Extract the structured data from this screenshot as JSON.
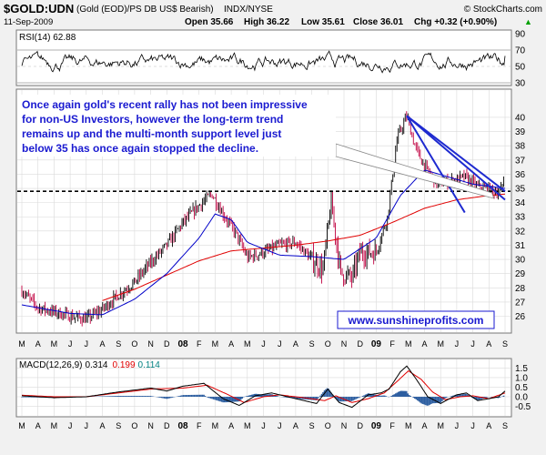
{
  "header": {
    "symbol": "$GOLD:UDN",
    "description": "(Gold (EOD)/PS DB US$ Bearish)",
    "exchange": "INDX/NYSE",
    "copyright": "© StockCharts.com",
    "date": "11-Sep-2009",
    "open": "Open 35.66",
    "high": "High 36.22",
    "low": "Low 35.61",
    "close": "Close 36.01",
    "change": "Chg +0.32 (+0.90%)",
    "change_arrow": "▲"
  },
  "annotation": {
    "line1": "Once again gold's recent rally has not been impressive",
    "line2": "for non-US Investors, however the long-term trend",
    "line3": "remains up and the multi-month support level just",
    "line4": "below 35 has once again stopped the decline."
  },
  "watermark": "www.sunshineprofits.com",
  "colors": {
    "background": "#f1f1f1",
    "panel": "#ffffff",
    "price_up": "#000000",
    "price_down": "#c00040",
    "ma_fast": "#0000c8",
    "ma_slow": "#e00000",
    "trendline": "#1e2ad0",
    "annotation_text": "#1a1ad0",
    "macd_hist": "#2d5ea0",
    "macd_signal_text": "#e00000",
    "macd_hist_text": "#008080"
  },
  "chart_data": [
    {
      "type": "line",
      "title": "RSI(14) 62.88",
      "indicator": "RSI",
      "period": 14,
      "last_value": 62.88,
      "ylim": [
        30,
        90
      ],
      "yticks": [
        30,
        50,
        70,
        90
      ],
      "reference_lines": [
        30,
        70
      ]
    },
    {
      "type": "candlestick",
      "title": "$GOLD:UDN",
      "ylim": [
        25.2,
        41.6
      ],
      "yticks": [
        26,
        27,
        28,
        29,
        30,
        31,
        32,
        33,
        34,
        35,
        36,
        37,
        38,
        39,
        40
      ],
      "x_months": [
        "M",
        "A",
        "M",
        "J",
        "J",
        "A",
        "S",
        "O",
        "N",
        "D",
        "08",
        "F",
        "M",
        "A",
        "M",
        "J",
        "J",
        "A",
        "S",
        "O",
        "N",
        "D",
        "09",
        "F",
        "M",
        "A",
        "M",
        "J",
        "J",
        "A",
        "S"
      ],
      "year_labels": [
        "08",
        "09"
      ],
      "price_path": [
        [
          0,
          27.8
        ],
        [
          1,
          26.6
        ],
        [
          2,
          26.3
        ],
        [
          3,
          26.0
        ],
        [
          4,
          25.8
        ],
        [
          5,
          26.5
        ],
        [
          6,
          27.5
        ],
        [
          7,
          28.4
        ],
        [
          8,
          29.8
        ],
        [
          9,
          31.0
        ],
        [
          10,
          32.6
        ],
        [
          11,
          33.8
        ],
        [
          11.8,
          34.6
        ],
        [
          12.6,
          33.0
        ],
        [
          13.3,
          31.8
        ],
        [
          14.0,
          30.1
        ],
        [
          15.0,
          30.5
        ],
        [
          16.0,
          31.0
        ],
        [
          17.0,
          31.2
        ],
        [
          18.0,
          30.0
        ],
        [
          18.7,
          29.3
        ],
        [
          19.2,
          34.0
        ],
        [
          19.8,
          29.0
        ],
        [
          20.5,
          28.7
        ],
        [
          21.0,
          30.5
        ],
        [
          22.0,
          30.5
        ],
        [
          22.7,
          33.0
        ],
        [
          23.3,
          38.5
        ],
        [
          23.9,
          40.1
        ],
        [
          24.4,
          38.0
        ],
        [
          25.0,
          36.5
        ],
        [
          25.8,
          35.3
        ],
        [
          26.7,
          35.5
        ],
        [
          27.5,
          35.8
        ],
        [
          28.3,
          35.1
        ],
        [
          29.0,
          34.9
        ],
        [
          29.7,
          34.7
        ],
        [
          30.0,
          36.0
        ]
      ],
      "ma_fast_path": [
        [
          0,
          26.8
        ],
        [
          3,
          26.2
        ],
        [
          5,
          26.1
        ],
        [
          7,
          27.2
        ],
        [
          9,
          29.0
        ],
        [
          11,
          31.5
        ],
        [
          12,
          33.2
        ],
        [
          13,
          32.8
        ],
        [
          14,
          31.2
        ],
        [
          16,
          30.3
        ],
        [
          18,
          30.2
        ],
        [
          20,
          30.0
        ],
        [
          22,
          31.5
        ],
        [
          23.5,
          34.5
        ],
        [
          25,
          36.3
        ],
        [
          26.5,
          35.8
        ],
        [
          28,
          35.3
        ],
        [
          30,
          35.0
        ]
      ],
      "ma_slow_path": [
        [
          5,
          27.1
        ],
        [
          7,
          27.9
        ],
        [
          9,
          28.9
        ],
        [
          11,
          29.9
        ],
        [
          13,
          30.6
        ],
        [
          15,
          30.8
        ],
        [
          17,
          31.0
        ],
        [
          19,
          31.3
        ],
        [
          21,
          31.7
        ],
        [
          23,
          32.6
        ],
        [
          25,
          33.6
        ],
        [
          27,
          34.2
        ],
        [
          29,
          34.5
        ],
        [
          30,
          34.6
        ]
      ],
      "support_level": 34.8,
      "trendlines": [
        [
          [
            23.9,
            40.1
          ],
          [
            30.0,
            34.2
          ]
        ],
        [
          [
            23.9,
            40.1
          ],
          [
            30.0,
            34.8
          ]
        ],
        [
          [
            23.9,
            40.1
          ],
          [
            27.5,
            33.3
          ]
        ]
      ],
      "annotation_arrow_to": [
        29.3,
        34.3
      ]
    },
    {
      "type": "line",
      "title": "MACD(12,26,9)",
      "indicator": "MACD",
      "params": "(12,26,9)",
      "label": "MACD(12,26,9)",
      "macd_value": "0.314",
      "signal_value": "0.199",
      "hist_value": "0.114",
      "ylim": [
        -0.9,
        1.8
      ],
      "yticks": [
        -0.5,
        0.0,
        0.5,
        1.0,
        1.5
      ],
      "macd_path": [
        [
          0,
          0.05
        ],
        [
          2,
          -0.05
        ],
        [
          4,
          0.0
        ],
        [
          6,
          0.25
        ],
        [
          8,
          0.45
        ],
        [
          9,
          0.3
        ],
        [
          10,
          0.55
        ],
        [
          11.3,
          0.7
        ],
        [
          12.5,
          -0.1
        ],
        [
          13.5,
          -0.45
        ],
        [
          14.5,
          0.05
        ],
        [
          15.5,
          0.2
        ],
        [
          17,
          -0.1
        ],
        [
          18.3,
          -0.35
        ],
        [
          19,
          0.4
        ],
        [
          19.7,
          -0.3
        ],
        [
          20.5,
          -0.55
        ],
        [
          21.5,
          0.1
        ],
        [
          22.3,
          0.2
        ],
        [
          22.8,
          0.4
        ],
        [
          23.5,
          1.3
        ],
        [
          23.9,
          1.6
        ],
        [
          24.5,
          0.9
        ],
        [
          25.2,
          0.0
        ],
        [
          26.0,
          -0.35
        ],
        [
          27.0,
          0.1
        ],
        [
          27.6,
          0.2
        ],
        [
          28.3,
          -0.2
        ],
        [
          29.0,
          -0.1
        ],
        [
          29.6,
          0.0
        ],
        [
          30.0,
          0.3
        ]
      ],
      "signal_path": [
        [
          0,
          0.08
        ],
        [
          2,
          0.0
        ],
        [
          4,
          0.0
        ],
        [
          6,
          0.2
        ],
        [
          8,
          0.4
        ],
        [
          10,
          0.45
        ],
        [
          11.5,
          0.6
        ],
        [
          12.7,
          0.15
        ],
        [
          13.8,
          -0.3
        ],
        [
          15,
          0.0
        ],
        [
          16,
          0.1
        ],
        [
          17.5,
          -0.05
        ],
        [
          18.8,
          -0.2
        ],
        [
          19.5,
          0.05
        ],
        [
          20.5,
          -0.3
        ],
        [
          21.5,
          -0.1
        ],
        [
          22.5,
          0.2
        ],
        [
          23.3,
          0.8
        ],
        [
          24.0,
          1.35
        ],
        [
          24.8,
          0.9
        ],
        [
          25.5,
          0.25
        ],
        [
          26.3,
          -0.15
        ],
        [
          27.2,
          0.0
        ],
        [
          28.0,
          0.05
        ],
        [
          29.0,
          -0.1
        ],
        [
          30.0,
          0.2
        ]
      ]
    }
  ]
}
